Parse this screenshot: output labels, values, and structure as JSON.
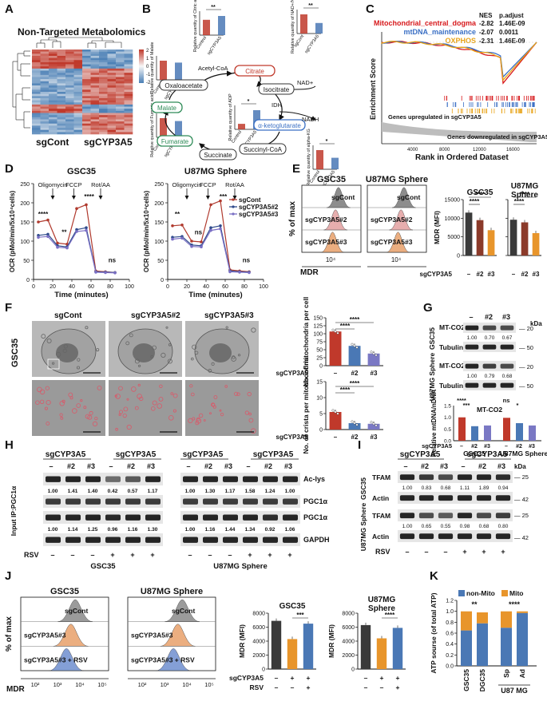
{
  "panels": {
    "A": {
      "letter": "A",
      "title": "Non-Targeted Metabolomics",
      "group_labels": [
        "sgCont",
        "sgCYP3A5"
      ],
      "colorbar_ticks": [
        "2",
        "1",
        "0",
        "-1",
        "-2"
      ],
      "colors": {
        "high": "#c0392b",
        "mid": "#f7f7f7",
        "low": "#4a7fb5"
      }
    },
    "B": {
      "letter": "B",
      "nodes": [
        "Citrate",
        "Isocitrate",
        "α-ketoglutarate",
        "Succinyl-CoA",
        "Succinate",
        "Fumarate",
        "Malate",
        "Oxaloacetate"
      ],
      "cofactors": [
        "Acetyl-CoA",
        "NAD+",
        "IDH",
        "NADH"
      ],
      "mini_bars": [
        {
          "ylabel": "Relative quantity of Citric acid",
          "groups": [
            "Control",
            "sgCYP3A5"
          ],
          "values": [
            1.0,
            1.25
          ],
          "sig": "**"
        },
        {
          "ylabel": "Relative quantity of NAD+/NADH",
          "groups": [
            "sgCont",
            "sgCYP3A5"
          ],
          "values": [
            1.0,
            0.55
          ],
          "sig": "**"
        },
        {
          "ylabel": "Relative quantity of Malate",
          "groups": [
            "Control",
            "sgCYP3A5"
          ],
          "values": [
            1.0,
            0.9
          ],
          "sig": ""
        },
        {
          "ylabel": "Relative quantity of ADP",
          "groups": [
            "Control",
            "sgCYP3A5"
          ],
          "values": [
            1.0,
            3.5
          ],
          "sig": "*"
        },
        {
          "ylabel": "Relative quantity of Fumaric acid",
          "groups": [
            "Control",
            "sgCYP3A5"
          ],
          "values": [
            1.0,
            0.85
          ],
          "sig": ""
        },
        {
          "ylabel": "Relative quantity of alpha-KG",
          "groups": [
            "Control",
            "sgCYP3A5"
          ],
          "values": [
            1.0,
            0.6
          ],
          "sig": "*"
        }
      ]
    },
    "C": {
      "letter": "C",
      "header": [
        "NES",
        "p.adjust"
      ],
      "sets": [
        {
          "name": "Mitochondrial_central_dogma",
          "nes": "-2.82",
          "padj": "1.46E-09",
          "color": "#d7191c"
        },
        {
          "name": "mtDNA_maintenance",
          "nes": "-2.07",
          "padj": "0.0011",
          "color": "#3a6fc4"
        },
        {
          "name": "OXPHOS",
          "nes": "-2.31",
          "padj": "1.46E-09",
          "color": "#e8a317"
        }
      ],
      "ylabel": "Enrichment Score",
      "xlabel": "Rank in Ordered Dataset",
      "up_note": "Genes upregulated in sgCYP3A5",
      "down_note": "Genes downregulated in sgCYP3A5",
      "xticks": [
        "4000",
        "8000",
        "12000",
        "16000"
      ]
    },
    "D": {
      "letter": "D",
      "plots": [
        {
          "title": "GSC35",
          "sig": [
            "****",
            "**",
            "****",
            "ns"
          ]
        },
        {
          "title": "U87MG Sphere",
          "sig": [
            "**",
            "ns",
            "***",
            "ns"
          ]
        }
      ],
      "treatments": [
        "Oligomycin",
        "FCCP",
        "Rot/AA"
      ],
      "ylabel": "OCR (pMol/min/5x10⁴cells)",
      "xlabel": "Time (minutes)",
      "xticks": [
        "0",
        "20",
        "40",
        "60",
        "80",
        "100"
      ],
      "yticks": [
        "0",
        "50",
        "100",
        "150",
        "200",
        "250"
      ],
      "legend": [
        "sgCont",
        "sgCYP3A5#2",
        "sgCYP3A5#3"
      ],
      "series_colors": [
        "#b03a2e",
        "#2e4a8b",
        "#7a6fc4"
      ],
      "chart_data": [
        {
          "type": "line",
          "title": "GSC35",
          "x": [
            5,
            15,
            25,
            35,
            45,
            55,
            65,
            75,
            85
          ],
          "series": [
            {
              "name": "sgCont",
              "values": [
                150,
                155,
                95,
                92,
                185,
                195,
                22,
                20,
                18
              ]
            },
            {
              "name": "sgCYP3A5#2",
              "values": [
                115,
                118,
                88,
                85,
                130,
                135,
                20,
                19,
                18
              ]
            },
            {
              "name": "sgCYP3A5#3",
              "values": [
                110,
                112,
                84,
                82,
                125,
                128,
                19,
                18,
                17
              ]
            }
          ]
        },
        {
          "type": "line",
          "title": "U87MG Sphere",
          "x": [
            5,
            15,
            25,
            35,
            45,
            55,
            65,
            75,
            85
          ],
          "series": [
            {
              "name": "sgCont",
              "values": [
                140,
                142,
                100,
                98,
                195,
                205,
                25,
                22,
                20
              ]
            },
            {
              "name": "sgCYP3A5#2",
              "values": [
                110,
                112,
                90,
                88,
                135,
                140,
                22,
                20,
                19
              ]
            },
            {
              "name": "sgCYP3A5#3",
              "values": [
                105,
                108,
                86,
                85,
                128,
                132,
                20,
                19,
                18
              ]
            }
          ]
        }
      ]
    },
    "E": {
      "letter": "E",
      "hist_titles": [
        "GSC35",
        "U87MG Sphere"
      ],
      "rows": [
        "sgCont",
        "sgCYP3A5#2",
        "sgCYP3A5#3"
      ],
      "ylabel": "% of max",
      "xlabel": "MDR",
      "xtick": "10⁴",
      "bars": [
        {
          "title": "GSC35",
          "ylabel": "MDR (MFI)",
          "yticks": [
            "0",
            "5000",
            "10000",
            "15000"
          ],
          "values": [
            11500,
            9500,
            6800
          ]
        },
        {
          "title": "U87MG Sphere",
          "yticks": [
            "0",
            "5000",
            "10000",
            "15000"
          ],
          "values": [
            9600,
            8900,
            6000
          ]
        }
      ],
      "group_row_label": "sgCYP3A5",
      "group_ticks": [
        "–",
        "#2",
        "#3"
      ],
      "sig": "****"
    },
    "F": {
      "letter": "F",
      "cols": [
        "sgCont",
        "sgCYP3A5#2",
        "sgCYP3A5#3"
      ],
      "row_label": "GSC35",
      "plot1": {
        "ylabel": "No. of mitochondria per cell",
        "yticks": [
          "0",
          "25",
          "50",
          "75",
          "100",
          "125",
          "150"
        ],
        "values": [
          107,
          62,
          38
        ]
      },
      "plot2": {
        "ylabel": "No. of crista per mitochondria",
        "yticks": [
          "0",
          "5",
          "10",
          "15"
        ],
        "values": [
          5.5,
          2,
          1.8
        ]
      },
      "group_row_label": "sgCYP3A5",
      "group_ticks": [
        "–",
        "#2",
        "#3"
      ],
      "sig": "****"
    },
    "G": {
      "letter": "G",
      "kda": "kDa",
      "blocks": [
        {
          "cell": "GSC35",
          "bands": [
            "MT-CO2",
            "Tubulin"
          ],
          "values": [
            "1.00",
            "0.70",
            "0.67"
          ],
          "mw": [
            "20",
            "50"
          ]
        },
        {
          "cell": "U87MG Sphere",
          "bands": [
            "MT-CO2",
            "Tubulin"
          ],
          "values": [
            "1.00",
            "0.79",
            "0.68"
          ],
          "mw": [
            "20",
            "50"
          ]
        }
      ],
      "lane_labels": [
        "–",
        "#2",
        "#3"
      ],
      "bar_title": "MT-CO2",
      "ylabel": "Relative mtDNA/nDNA",
      "yticks": [
        "0.0",
        "0.5",
        "1.0",
        "1.5"
      ],
      "values": [
        1.0,
        0.62,
        0.65,
        0.98,
        0.75,
        0.65
      ],
      "sig_labels": [
        "****",
        "***",
        "ns",
        "*"
      ],
      "group_row_label": "sgCYP3A5",
      "xgroups": [
        "GSC35",
        "U87MG Sphere"
      ]
    },
    "H": {
      "letter": "H",
      "groups": [
        "sgCYP3A5",
        "sgCYP3A5"
      ],
      "lanes": [
        "–",
        "#2",
        "#3",
        "–",
        "#2",
        "#3"
      ],
      "ip_label": "IP:PGC1α",
      "input_label": "Input",
      "left": {
        "acly": [
          "1.00",
          "1.41",
          "1.40",
          "0.42",
          "0.57",
          "1.17"
        ],
        "pgc": [
          "1.00",
          "1.14",
          "1.25",
          "0.96",
          "1.16",
          "1.30"
        ]
      },
      "right": {
        "acly": [
          "1.00",
          "1.30",
          "1.17",
          "1.58",
          "1.24",
          "1.00"
        ],
        "pgc": [
          "1.00",
          "1.16",
          "1.44",
          "1.34",
          "0.92",
          "1.06"
        ]
      },
      "bands": [
        "Ac-lys",
        "PGC1α",
        "PGC1α",
        "GAPDH"
      ],
      "rsv_label": "RSV",
      "rsv": [
        "–",
        "–",
        "–",
        "+",
        "+",
        "+"
      ],
      "cells": [
        "GSC35",
        "U87MG Sphere"
      ]
    },
    "I": {
      "letter": "I",
      "groups": [
        "sgCYP3A5",
        "sgCYP3A5"
      ],
      "lanes": [
        "–",
        "#2",
        "#3",
        "–",
        "#2",
        "#3"
      ],
      "kda": "kDa",
      "blocks": [
        {
          "cell": "GSC35",
          "bands": [
            "TFAM",
            "Actin"
          ],
          "values": [
            "1.00",
            "0.83",
            "0.68",
            "1.11",
            "1.89",
            "0.94"
          ],
          "mw": [
            "25",
            "42"
          ]
        },
        {
          "cell": "U87MG Sphere",
          "bands": [
            "TFAM",
            "Actin"
          ],
          "values": [
            "1.00",
            "0.65",
            "0.55",
            "0.98",
            "0.68",
            "0.80"
          ],
          "mw": [
            "25",
            "42"
          ]
        }
      ],
      "rsv_label": "RSV",
      "rsv": [
        "–",
        "–",
        "–",
        "+",
        "+",
        "+"
      ]
    },
    "J": {
      "letter": "J",
      "hist_titles": [
        "GSC35",
        "U87MG Sphere"
      ],
      "rows": [
        "sgCont",
        "sgCYP3A5#3",
        "sgCYP3A5#3 + RSV"
      ],
      "ylabel": "% of max",
      "xlabel": "MDR",
      "xticks": [
        "10²",
        "10³",
        "10⁴",
        "10⁵"
      ],
      "bars": [
        {
          "title": "GSC35",
          "ylabel": "MDR (MFI)",
          "yticks": [
            "0",
            "2000",
            "4000",
            "6000",
            "8000"
          ],
          "values": [
            6900,
            4300,
            6500
          ],
          "sig": "***"
        },
        {
          "title": "U87MG Sphere",
          "ylabel": "MDR (MFI)",
          "yticks": [
            "0",
            "2000",
            "4000",
            "6000",
            "8000"
          ],
          "values": [
            6300,
            4400,
            5900
          ],
          "sig": "****"
        }
      ],
      "row1_label": "sgCYP3A5",
      "row1": [
        "–",
        "+",
        "+"
      ],
      "row2_label": "RSV",
      "row2": [
        "–",
        "–",
        "+"
      ]
    },
    "K": {
      "letter": "K",
      "legend": [
        "non-Mito",
        "Mito"
      ],
      "colors": [
        "#4a78b5",
        "#e8952b"
      ],
      "ylabel": "ATP sourse (of total ATP)",
      "yticks": [
        "0.0",
        "0.2",
        "0.4",
        "0.6",
        "0.8",
        "1.0",
        "1.2"
      ],
      "categories": [
        "GSC35",
        "DGC35",
        "Sp",
        "Ad"
      ],
      "group_label": "U87 MG",
      "non_mito": [
        0.65,
        0.78,
        0.7,
        0.97
      ],
      "mito": [
        0.35,
        0.2,
        0.3,
        0.03
      ],
      "sig": [
        "**",
        "****"
      ]
    }
  }
}
